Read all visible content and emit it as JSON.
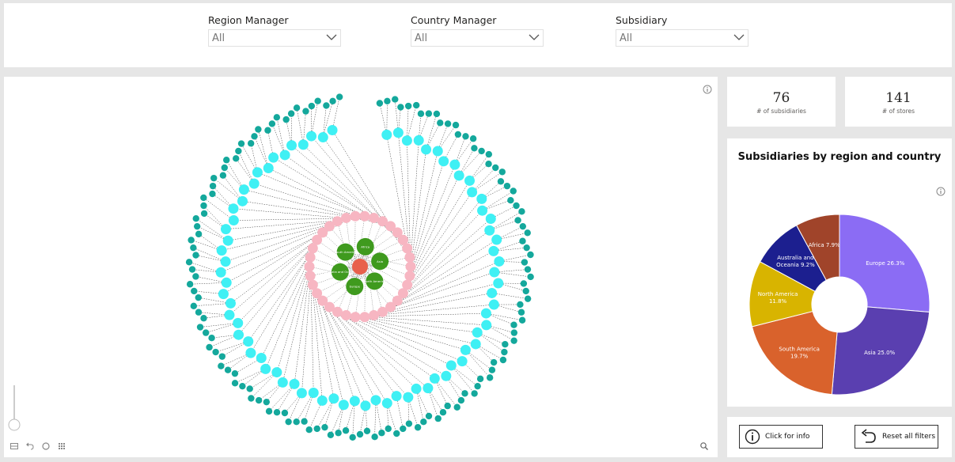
{
  "filters": {
    "region_manager": {
      "label": "Region Manager",
      "value": "All"
    },
    "country_manager": {
      "label": "Country Manager",
      "value": "All"
    },
    "subsidiary": {
      "label": "Subsidiary",
      "value": "All"
    }
  },
  "cards": {
    "subsidiaries": {
      "value": "76",
      "caption": "# of subsidiaries"
    },
    "stores": {
      "value": "141",
      "caption": "# of stores"
    }
  },
  "network": {
    "root_color": "#e8604c",
    "region_color": "#3f9a1e",
    "country_color": "#f7b6c2",
    "subsidiary_color": "#3ff0f4",
    "store_color": "#14a89c",
    "region_labels": [
      "South America",
      "Africa",
      "Asia",
      "North America",
      "Europe",
      "Australia and Oceania"
    ],
    "counts": {
      "regions": 6,
      "countries": 34,
      "subsidiaries": 76,
      "stores": 141
    }
  },
  "chart_data": {
    "type": "pie",
    "donut": true,
    "title": "Subsidiaries by region and country",
    "categories": [
      "Europe",
      "Asia",
      "South America",
      "North America",
      "Australia and Oceania",
      "Africa"
    ],
    "values": [
      26.3,
      25.0,
      19.7,
      11.8,
      9.2,
      7.9
    ],
    "slice_labels": [
      "Europe 26.3%",
      "Asia 25.0%",
      "South America 19.7%",
      "North America 11.8%",
      "Australia and Oceania 9.2%",
      "Africa 7.9%"
    ],
    "colors": [
      "#8b6cf4",
      "#5a3fb0",
      "#d9622c",
      "#d8b400",
      "#1c1f8f",
      "#a0442a"
    ]
  },
  "buttons": {
    "info": "Click for info",
    "reset": "Reset all filters"
  }
}
